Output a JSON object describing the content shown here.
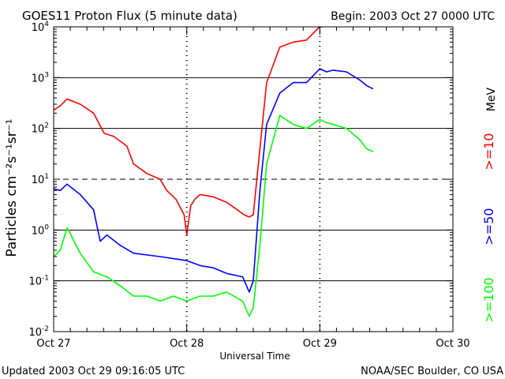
{
  "header": {
    "title": "GOES11 Proton Flux (5 minute data)",
    "begin": "Begin: 2003 Oct 27 0000 UTC"
  },
  "footer": {
    "updated": "Updated 2003 Oct 29 09:16:05 UTC",
    "credit": "NOAA/SEC Boulder, CO USA"
  },
  "colors": {
    "red": "#ff0000",
    "blue": "#0000ff",
    "green": "#00ff00"
  },
  "chart_data": {
    "type": "line",
    "title": "GOES11 Proton Flux (5 minute data)",
    "xlabel": "Universal Time",
    "ylabel": "Particles cm⁻²s⁻¹sr⁻¹",
    "yscale": "log",
    "ylim": [
      0.01,
      10000
    ],
    "xlim_days": [
      0,
      3
    ],
    "x_ticks": [
      "Oct 27",
      "Oct 28",
      "Oct 29",
      "Oct 30"
    ],
    "y_ticks": [
      {
        "base": "10",
        "exp": "4"
      },
      {
        "base": "10",
        "exp": "3"
      },
      {
        "base": "10",
        "exp": "2"
      },
      {
        "base": "10",
        "exp": "1"
      },
      {
        "base": "10",
        "exp": "0"
      },
      {
        "base": "10",
        "exp": "-1"
      },
      {
        "base": "10",
        "exp": "-2"
      }
    ],
    "right_labels": {
      "unit": "MeV",
      "ge10": ">=10",
      "ge50": ">=50",
      "ge100": ">=100"
    },
    "series": [
      {
        "name": ">=10",
        "color": "#ff0000",
        "x": [
          0.0,
          0.05,
          0.1,
          0.2,
          0.3,
          0.38,
          0.45,
          0.55,
          0.6,
          0.7,
          0.8,
          0.85,
          0.92,
          0.98,
          1.0,
          1.03,
          1.06,
          1.1,
          1.2,
          1.3,
          1.38,
          1.43,
          1.47,
          1.5,
          1.55,
          1.6,
          1.7,
          1.8,
          1.9,
          1.98,
          2.0,
          2.02
        ],
        "y": [
          230,
          280,
          380,
          300,
          200,
          80,
          70,
          45,
          20,
          13,
          10,
          6.0,
          4.0,
          2.0,
          0.8,
          3.0,
          4.0,
          5.0,
          4.5,
          3.5,
          2.5,
          2.0,
          1.8,
          2.0,
          40,
          800,
          4000,
          5000,
          5500,
          9000,
          10000,
          10000
        ]
      },
      {
        "name": ">=50",
        "color": "#0000ff",
        "x": [
          0.0,
          0.05,
          0.1,
          0.2,
          0.3,
          0.35,
          0.4,
          0.5,
          0.6,
          0.8,
          1.0,
          1.1,
          1.2,
          1.3,
          1.42,
          1.47,
          1.5,
          1.55,
          1.6,
          1.7,
          1.8,
          1.9,
          2.0,
          2.05,
          2.1,
          2.2,
          2.3,
          2.35,
          2.4
        ],
        "y": [
          6.5,
          6.0,
          8.0,
          5.0,
          2.5,
          0.6,
          0.8,
          0.5,
          0.35,
          0.3,
          0.25,
          0.2,
          0.18,
          0.14,
          0.12,
          0.06,
          0.1,
          6.0,
          120,
          500,
          800,
          800,
          1500,
          1300,
          1400,
          1300,
          900,
          700,
          600
        ]
      },
      {
        "name": ">=100",
        "color": "#00ff00",
        "x": [
          0.0,
          0.05,
          0.1,
          0.12,
          0.2,
          0.3,
          0.4,
          0.5,
          0.6,
          0.7,
          0.8,
          0.9,
          1.0,
          1.1,
          1.2,
          1.3,
          1.42,
          1.47,
          1.5,
          1.55,
          1.6,
          1.7,
          1.8,
          1.9,
          2.0,
          2.05,
          2.1,
          2.2,
          2.3,
          2.35,
          2.4
        ],
        "y": [
          0.3,
          0.4,
          1.1,
          0.9,
          0.35,
          0.15,
          0.12,
          0.08,
          0.05,
          0.05,
          0.04,
          0.05,
          0.04,
          0.05,
          0.05,
          0.06,
          0.04,
          0.02,
          0.03,
          0.5,
          20,
          180,
          120,
          100,
          150,
          130,
          120,
          100,
          60,
          40,
          35
        ]
      }
    ]
  }
}
